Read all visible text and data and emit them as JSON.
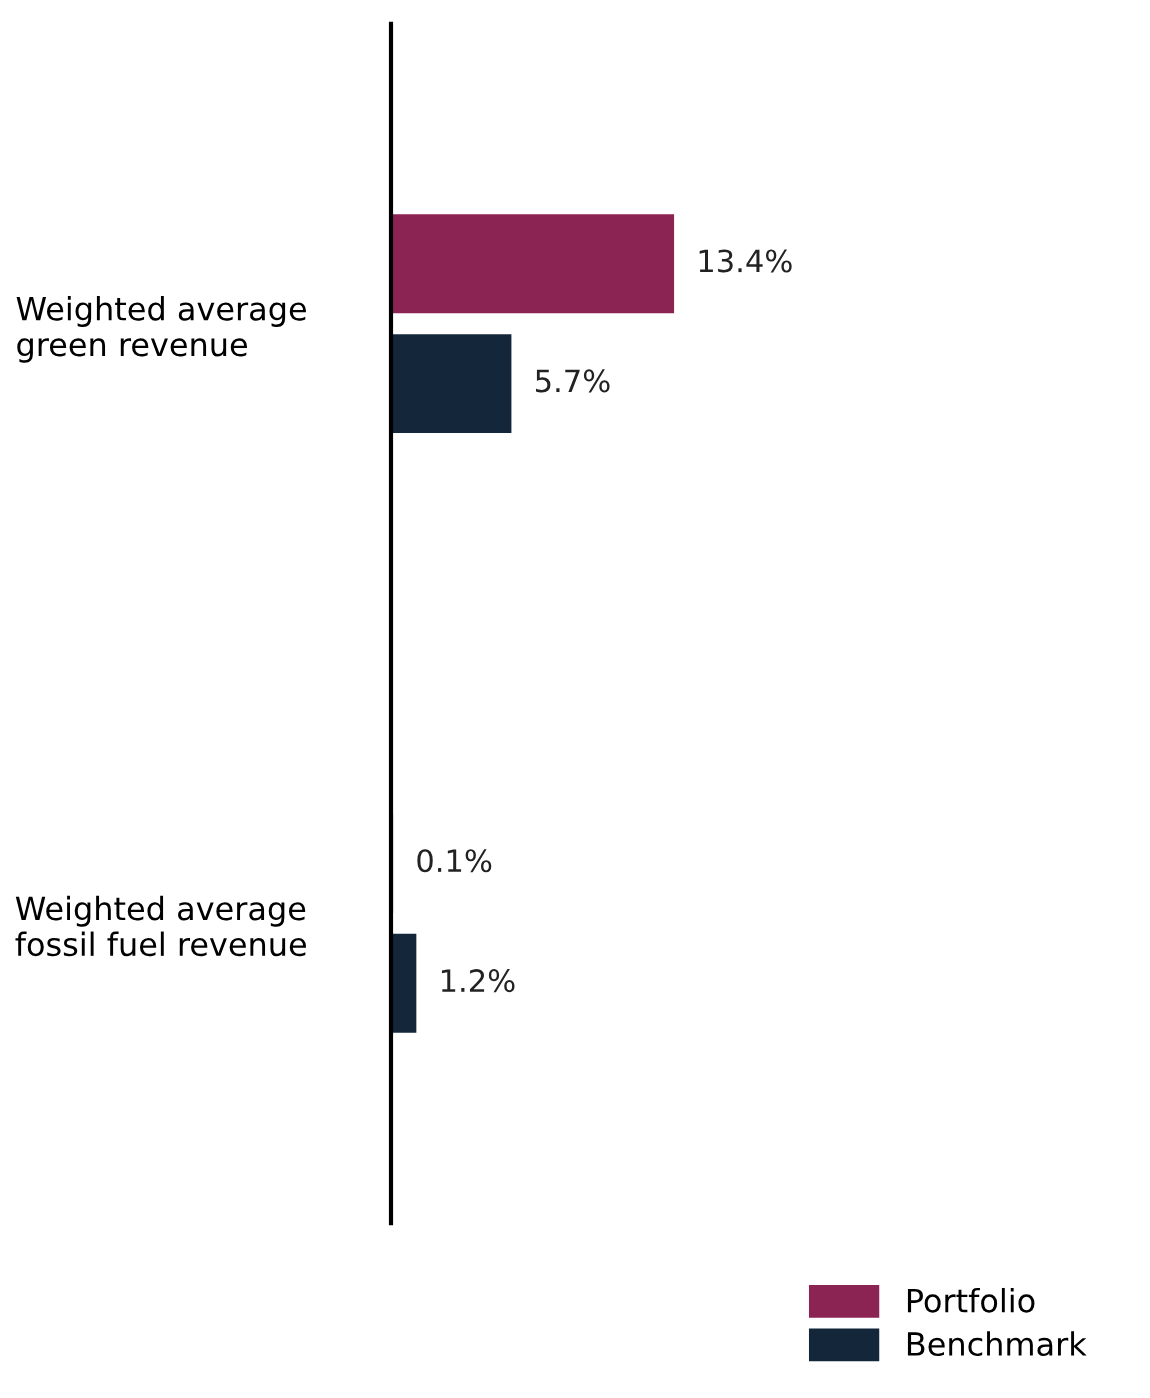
{
  "chart_data": {
    "type": "bar",
    "orientation": "horizontal",
    "categories": [
      "Weighted average\ngreen revenue",
      "Weighted average\nfossil fuel revenue"
    ],
    "series": [
      {
        "name": "Portfolio",
        "color": "#8b2353",
        "values": [
          13.4,
          0.1
        ],
        "value_labels": [
          "13.4%",
          "0.1%"
        ]
      },
      {
        "name": "Benchmark",
        "color": "#13263a",
        "values": [
          5.7,
          1.2
        ],
        "value_labels": [
          "5.7%",
          "1.2%"
        ]
      }
    ],
    "legend": "bottom right",
    "grid": false
  }
}
